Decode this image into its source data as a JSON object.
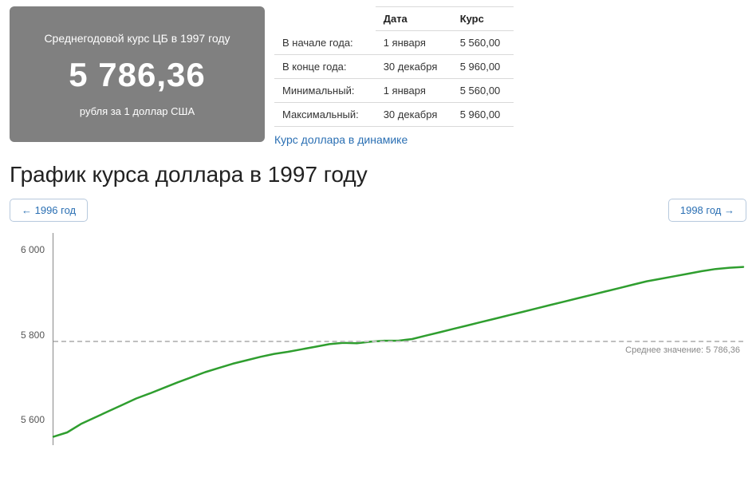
{
  "avg_card": {
    "title": "Среднегодовой курс ЦБ в 1997 году",
    "value": "5 786,36",
    "subtitle": "рубля за 1 доллар США"
  },
  "stats_table": {
    "headers": [
      "",
      "Дата",
      "Курс"
    ],
    "rows": [
      {
        "label": "В начале года:",
        "date": "1 января",
        "rate": "5 560,00"
      },
      {
        "label": "В конце года:",
        "date": "30 декабря",
        "rate": "5 960,00"
      },
      {
        "label": "Минимальный:",
        "date": "1 января",
        "rate": "5 560,00"
      },
      {
        "label": "Максимальный:",
        "date": "30 декабря",
        "rate": "5 960,00"
      }
    ],
    "link_text": "Курс доллара в динамике"
  },
  "chart_heading": "График курса доллара в 1997 году",
  "nav": {
    "prev": "← 1996 год",
    "next": "1998 год →"
  },
  "chart": {
    "type": "line",
    "line_color": "#2f9e2f",
    "line_width": 2.5,
    "background_color": "#ffffff",
    "axis_color": "#888888",
    "ylabel_color": "#555555",
    "ylabel_fontsize": 12,
    "avg_line_color": "#bfbfbf",
    "avg_line_dash": "6 5",
    "avg_value": 5786.36,
    "avg_label": "Среднее значение: 5 786,36",
    "y_ticks": [
      5600,
      5800,
      6000
    ],
    "ylim": [
      5540,
      6040
    ],
    "x_range": [
      0,
      1
    ],
    "series": [
      [
        0.0,
        5560
      ],
      [
        0.02,
        5570
      ],
      [
        0.04,
        5590
      ],
      [
        0.06,
        5605
      ],
      [
        0.08,
        5620
      ],
      [
        0.1,
        5635
      ],
      [
        0.12,
        5650
      ],
      [
        0.14,
        5662
      ],
      [
        0.16,
        5675
      ],
      [
        0.18,
        5688
      ],
      [
        0.2,
        5700
      ],
      [
        0.22,
        5712
      ],
      [
        0.24,
        5722
      ],
      [
        0.26,
        5732
      ],
      [
        0.28,
        5740
      ],
      [
        0.3,
        5748
      ],
      [
        0.32,
        5755
      ],
      [
        0.34,
        5760
      ],
      [
        0.36,
        5766
      ],
      [
        0.38,
        5772
      ],
      [
        0.4,
        5778
      ],
      [
        0.42,
        5781
      ],
      [
        0.44,
        5780
      ],
      [
        0.46,
        5784
      ],
      [
        0.48,
        5786
      ],
      [
        0.5,
        5786
      ],
      [
        0.52,
        5790
      ],
      [
        0.54,
        5798
      ],
      [
        0.56,
        5806
      ],
      [
        0.58,
        5814
      ],
      [
        0.6,
        5822
      ],
      [
        0.62,
        5830
      ],
      [
        0.64,
        5838
      ],
      [
        0.66,
        5846
      ],
      [
        0.68,
        5854
      ],
      [
        0.7,
        5862
      ],
      [
        0.72,
        5870
      ],
      [
        0.74,
        5878
      ],
      [
        0.76,
        5886
      ],
      [
        0.78,
        5894
      ],
      [
        0.8,
        5902
      ],
      [
        0.82,
        5910
      ],
      [
        0.84,
        5918
      ],
      [
        0.86,
        5926
      ],
      [
        0.88,
        5932
      ],
      [
        0.9,
        5938
      ],
      [
        0.92,
        5944
      ],
      [
        0.94,
        5950
      ],
      [
        0.96,
        5955
      ],
      [
        0.98,
        5958
      ],
      [
        1.0,
        5960
      ]
    ]
  }
}
